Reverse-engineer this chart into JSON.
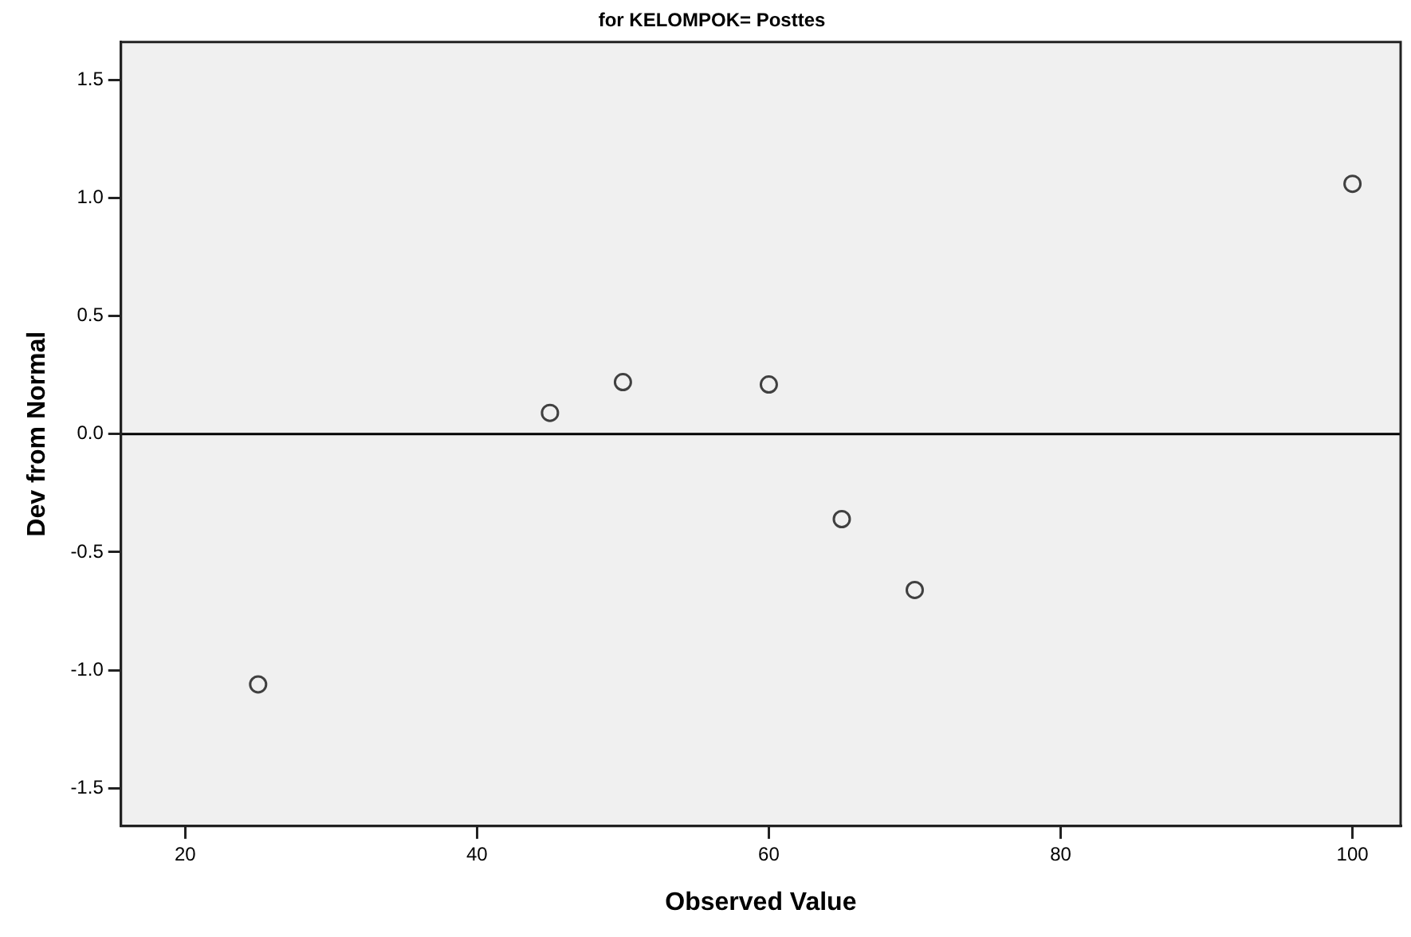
{
  "chart_data": {
    "type": "scatter",
    "title": "for KELOMPOK= Posttes",
    "xlabel": "Observed Value",
    "ylabel": "Dev from Normal",
    "x": [
      25,
      45,
      50,
      60,
      65,
      70,
      100
    ],
    "series": [
      {
        "color": "#404040",
        "values": [
          -1.06,
          0.09,
          0.22,
          0.21,
          -0.36,
          -0.66,
          1.06
        ]
      }
    ],
    "marker": "circle",
    "xlim": [
      15.6,
      103.3
    ],
    "xticks": [
      20,
      40,
      60,
      80,
      100
    ],
    "ylim": [
      -1.66,
      1.66
    ],
    "yticks": [
      {
        "value": -1.5,
        "label": "-1.5"
      },
      {
        "value": -1.0,
        "label": "-1.0"
      },
      {
        "value": -0.5,
        "label": "-0.5"
      },
      {
        "value": 0,
        "label": "0.0"
      },
      {
        "value": 0.5,
        "label": "0.5"
      },
      {
        "value": 1.0,
        "label": "1.0"
      },
      {
        "value": 1.5,
        "label": "1.5"
      }
    ],
    "ref_lines": [
      {
        "axis": "y",
        "value": 0,
        "color": "#000000"
      }
    ],
    "grid": false,
    "legend": false
  }
}
